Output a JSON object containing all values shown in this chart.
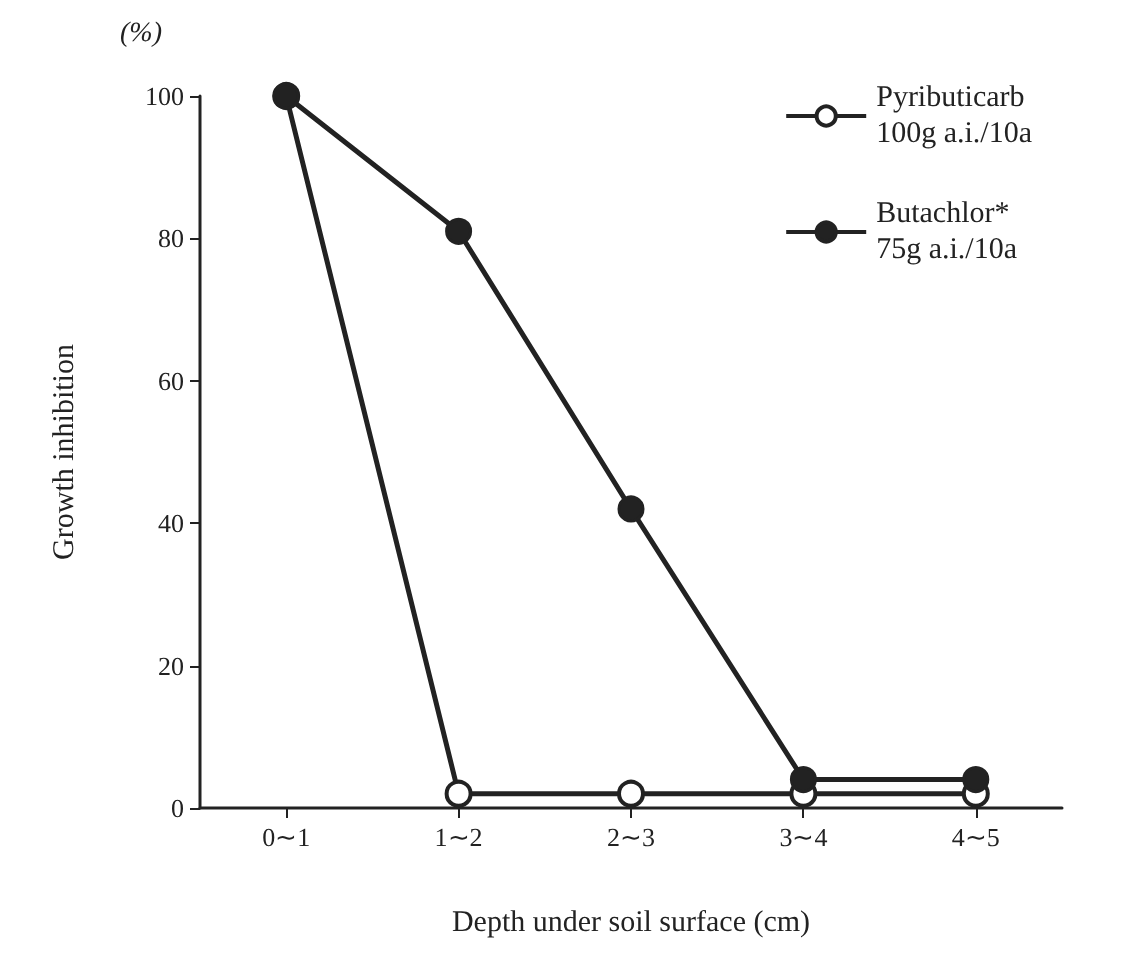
{
  "chart_data": {
    "type": "line",
    "xlabel": "Depth under soil surface (cm)",
    "ylabel": "Growth inhibition",
    "annotations": [
      "(%)"
    ],
    "categories": [
      "0∼1",
      "1∼2",
      "2∼3",
      "3∼4",
      "4∼5"
    ],
    "series": [
      {
        "name": "Pyributicarb\n100g a.i./10a",
        "color": "#222222",
        "values": [
          100,
          2,
          2,
          2,
          2
        ]
      },
      {
        "name": "Butachlor*\n75g a.i./10a",
        "color": "#222222",
        "values": [
          100,
          81,
          42,
          4,
          4
        ]
      }
    ],
    "ylim": [
      0,
      100
    ],
    "yticks": [
      0,
      20,
      40,
      60,
      80,
      100
    ],
    "grid": false,
    "legend": "top right",
    "marker": "circle",
    "line_style": "solid"
  }
}
